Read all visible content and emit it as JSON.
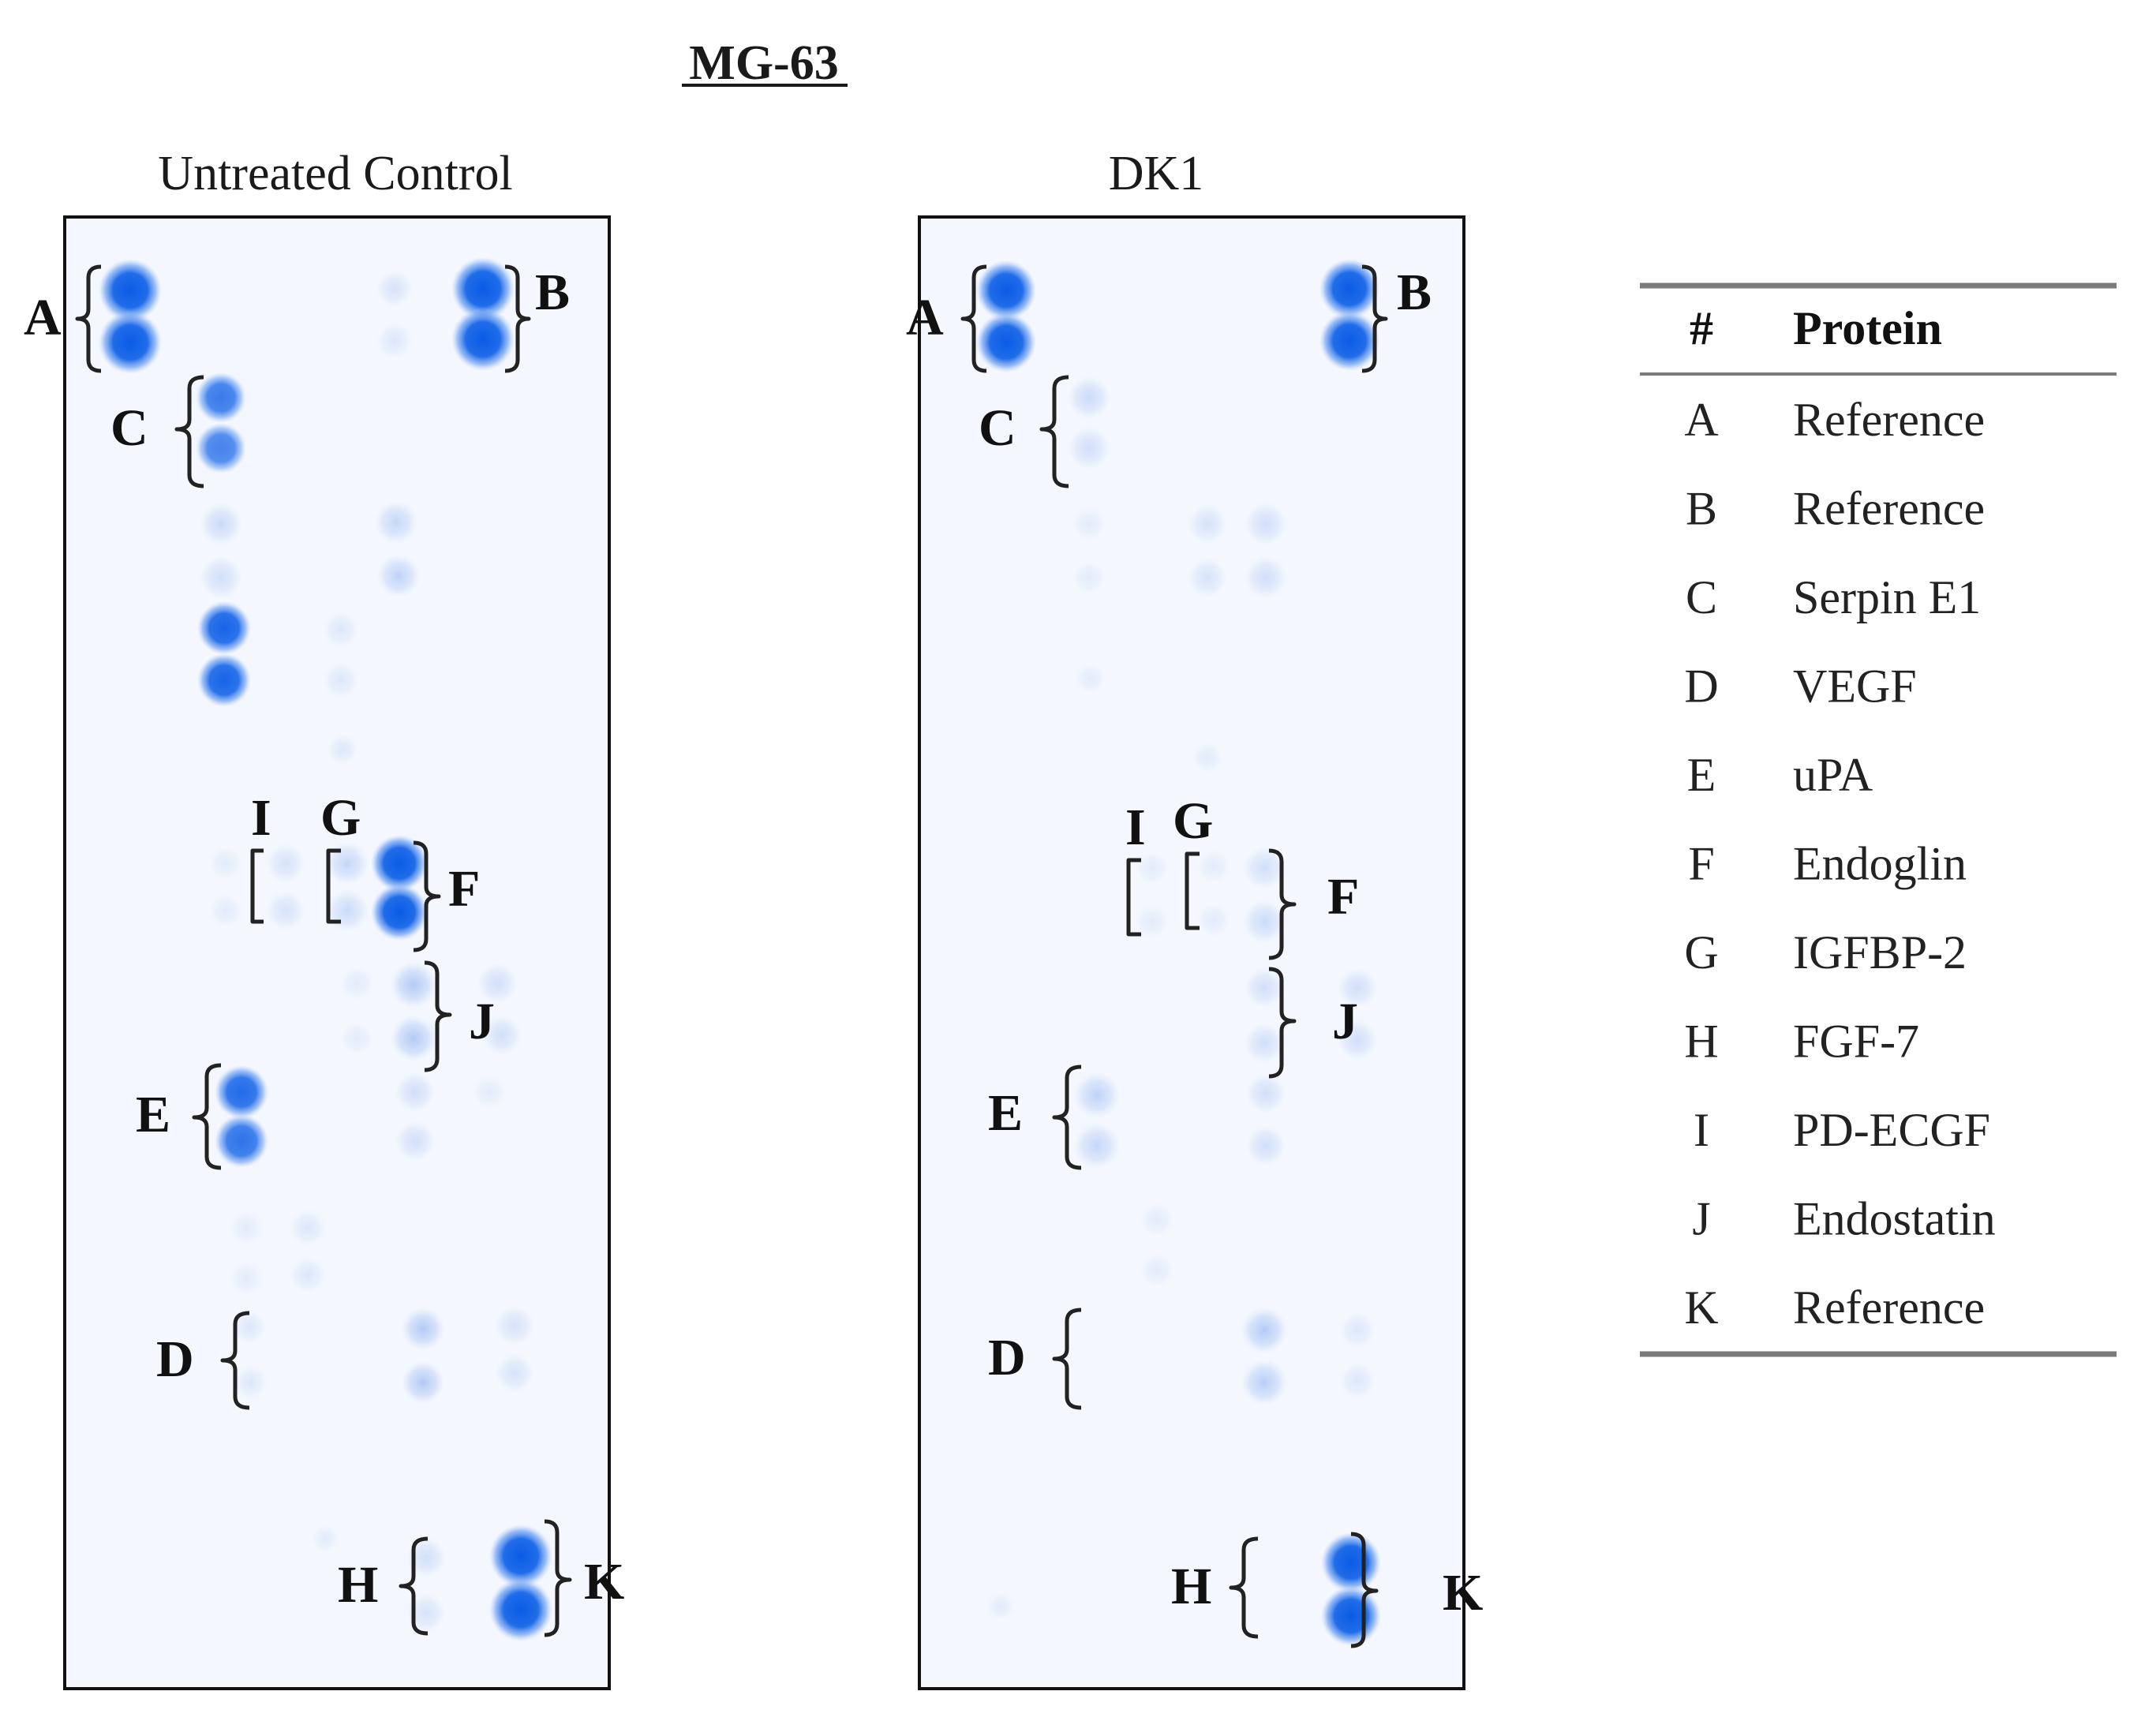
{
  "figure": {
    "title": "MG-63",
    "panels": [
      {
        "title": "Untreated Control"
      },
      {
        "title": "DK1"
      }
    ]
  },
  "legend_table": {
    "headers": [
      "#",
      "Protein"
    ],
    "rows": [
      {
        "key": "A",
        "protein": "Reference"
      },
      {
        "key": "B",
        "protein": "Reference"
      },
      {
        "key": "C",
        "protein": "Serpin E1"
      },
      {
        "key": "D",
        "protein": "VEGF"
      },
      {
        "key": "E",
        "protein": "uPA"
      },
      {
        "key": "F",
        "protein": "Endoglin"
      },
      {
        "key": "G",
        "protein": "IGFBP-2"
      },
      {
        "key": "H",
        "protein": "FGF-7"
      },
      {
        "key": "I",
        "protein": "PD-ECGF"
      },
      {
        "key": "J",
        "protein": "Endostatin"
      },
      {
        "key": "K",
        "protein": "Reference"
      }
    ]
  },
  "colors": {
    "spot": "#1565e8",
    "frame": "#111111",
    "background": "#f4f7fd"
  }
}
